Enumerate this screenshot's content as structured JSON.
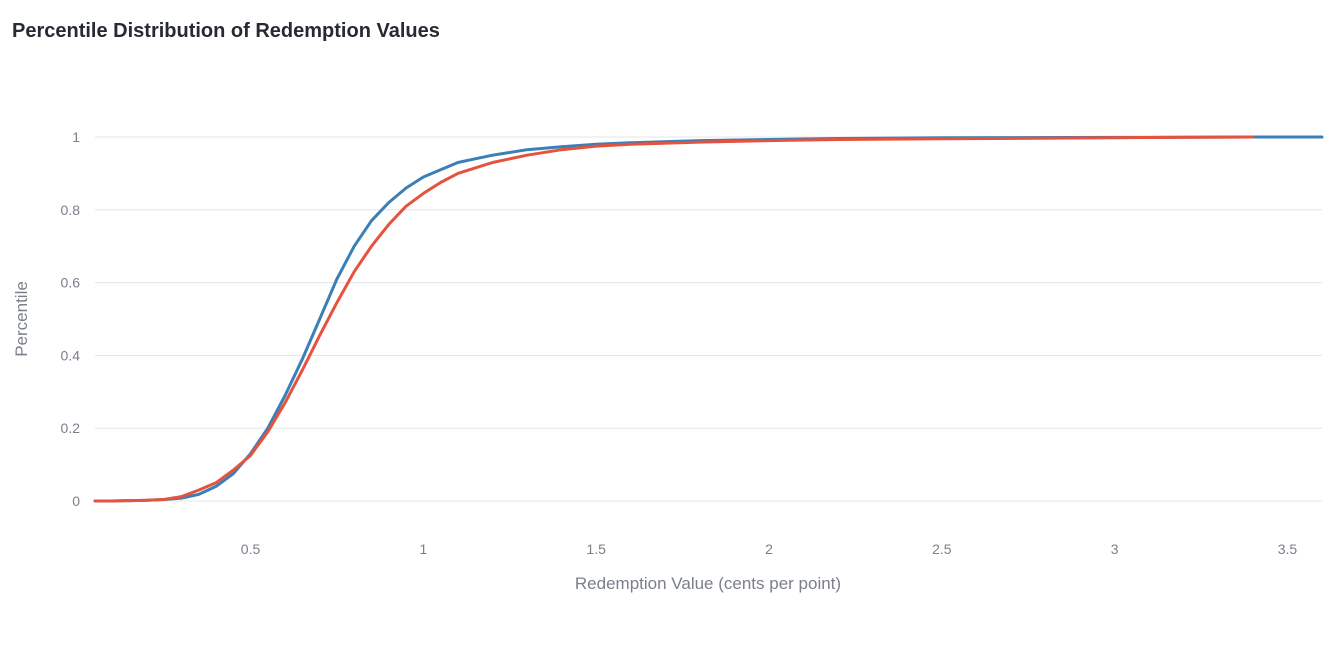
{
  "chart_data": {
    "type": "line",
    "title": "Percentile Distribution of Redemption Values",
    "xlabel": "Redemption Value (cents per point)",
    "ylabel": "Percentile",
    "xlim": [
      0.05,
      3.6
    ],
    "ylim": [
      0,
      1
    ],
    "x_ticks": [
      0.5,
      1,
      1.5,
      2,
      2.5,
      3,
      3.5
    ],
    "x_tick_labels": [
      "0.5",
      "1",
      "1.5",
      "2",
      "2.5",
      "3",
      "3.5"
    ],
    "y_ticks": [
      0,
      0.2,
      0.4,
      0.6,
      0.8,
      1
    ],
    "y_tick_labels": [
      "0",
      "0.2",
      "0.4",
      "0.6",
      "0.8",
      "1"
    ],
    "grid": "horizontal",
    "series": [
      {
        "color": "#3a7fb5",
        "x": [
          0.05,
          0.1,
          0.2,
          0.25,
          0.3,
          0.35,
          0.4,
          0.45,
          0.5,
          0.55,
          0.6,
          0.65,
          0.7,
          0.75,
          0.8,
          0.85,
          0.9,
          0.95,
          1.0,
          1.05,
          1.1,
          1.15,
          1.2,
          1.3,
          1.4,
          1.5,
          1.6,
          1.8,
          2.0,
          2.2,
          2.5,
          3.0,
          3.4,
          3.6
        ],
        "y": [
          0,
          0,
          0.002,
          0.004,
          0.008,
          0.018,
          0.04,
          0.075,
          0.13,
          0.2,
          0.29,
          0.39,
          0.5,
          0.61,
          0.7,
          0.77,
          0.82,
          0.86,
          0.89,
          0.91,
          0.93,
          0.94,
          0.95,
          0.965,
          0.973,
          0.98,
          0.984,
          0.99,
          0.993,
          0.996,
          0.998,
          0.999,
          1.0,
          1.0
        ]
      },
      {
        "color": "#e5533f",
        "x": [
          0.05,
          0.1,
          0.2,
          0.25,
          0.3,
          0.35,
          0.4,
          0.45,
          0.5,
          0.55,
          0.6,
          0.65,
          0.7,
          0.75,
          0.8,
          0.85,
          0.9,
          0.95,
          1.0,
          1.05,
          1.1,
          1.15,
          1.2,
          1.3,
          1.4,
          1.5,
          1.6,
          1.8,
          2.0,
          2.2,
          2.5,
          3.0,
          3.4
        ],
        "y": [
          0,
          0,
          0.002,
          0.004,
          0.012,
          0.03,
          0.05,
          0.085,
          0.125,
          0.19,
          0.27,
          0.36,
          0.455,
          0.545,
          0.63,
          0.7,
          0.76,
          0.81,
          0.845,
          0.875,
          0.9,
          0.915,
          0.93,
          0.95,
          0.965,
          0.975,
          0.98,
          0.986,
          0.99,
          0.993,
          0.995,
          0.998,
          1.0
        ]
      }
    ]
  }
}
